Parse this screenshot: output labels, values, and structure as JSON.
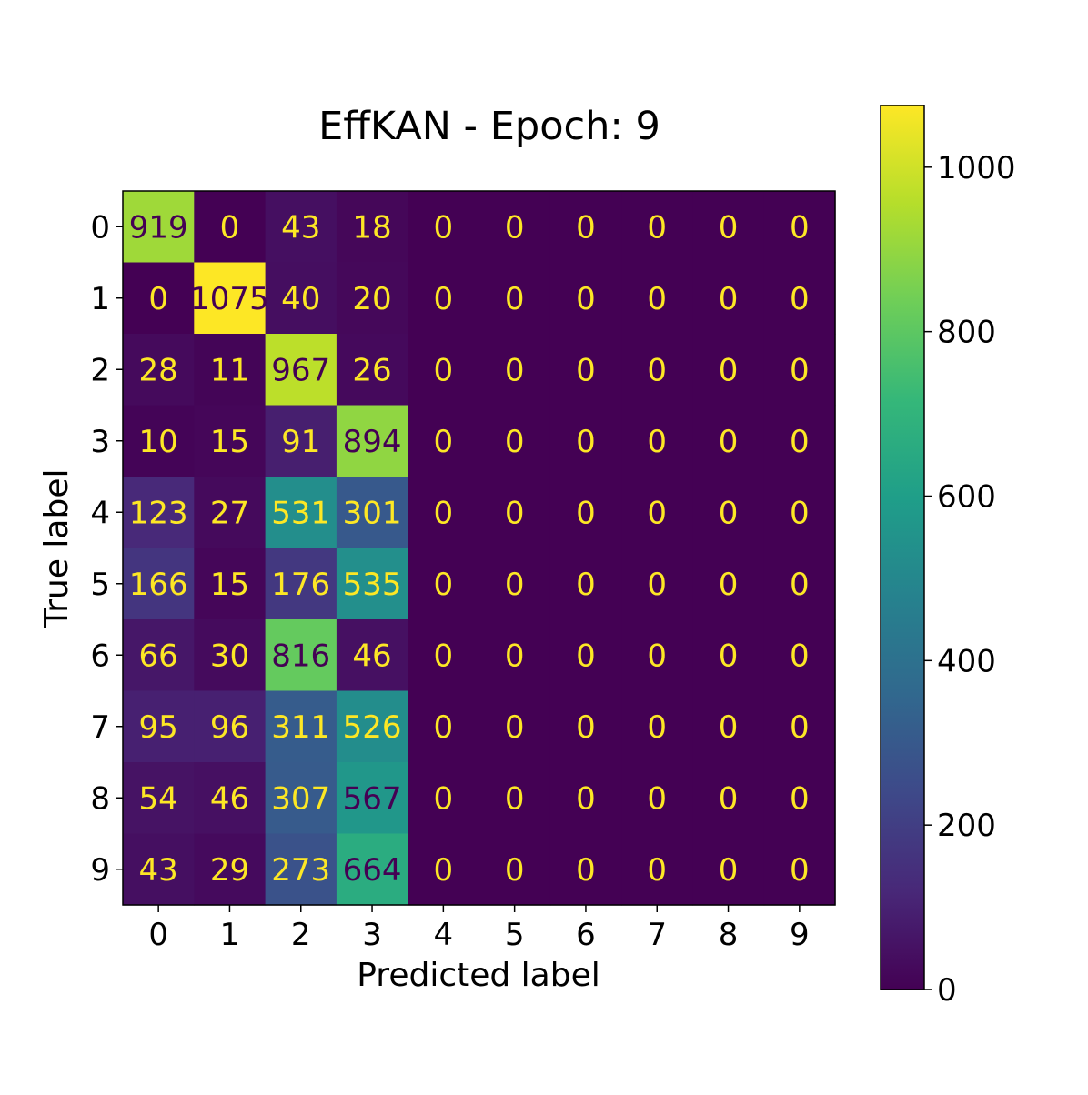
{
  "chart_data": {
    "type": "heatmap",
    "title": "EffKAN - Epoch: 9",
    "xlabel": "Predicted label",
    "ylabel": "True label",
    "x_tick_labels": [
      "0",
      "1",
      "2",
      "3",
      "4",
      "5",
      "6",
      "7",
      "8",
      "9"
    ],
    "y_tick_labels": [
      "0",
      "1",
      "2",
      "3",
      "4",
      "5",
      "6",
      "7",
      "8",
      "9"
    ],
    "matrix": [
      [
        919,
        0,
        43,
        18,
        0,
        0,
        0,
        0,
        0,
        0
      ],
      [
        0,
        1075,
        40,
        20,
        0,
        0,
        0,
        0,
        0,
        0
      ],
      [
        28,
        11,
        967,
        26,
        0,
        0,
        0,
        0,
        0,
        0
      ],
      [
        10,
        15,
        91,
        894,
        0,
        0,
        0,
        0,
        0,
        0
      ],
      [
        123,
        27,
        531,
        301,
        0,
        0,
        0,
        0,
        0,
        0
      ],
      [
        166,
        15,
        176,
        535,
        0,
        0,
        0,
        0,
        0,
        0
      ],
      [
        66,
        30,
        816,
        46,
        0,
        0,
        0,
        0,
        0,
        0
      ],
      [
        95,
        96,
        311,
        526,
        0,
        0,
        0,
        0,
        0,
        0
      ],
      [
        54,
        46,
        307,
        567,
        0,
        0,
        0,
        0,
        0,
        0
      ],
      [
        43,
        29,
        273,
        664,
        0,
        0,
        0,
        0,
        0,
        0
      ]
    ],
    "colormap": "viridis",
    "colorbar": {
      "range": [
        0,
        1075
      ],
      "ticks": [
        0,
        200,
        400,
        600,
        800,
        1000
      ]
    },
    "text_colors": {
      "light": "#fde725",
      "dark": "#440154"
    },
    "grid": false
  }
}
